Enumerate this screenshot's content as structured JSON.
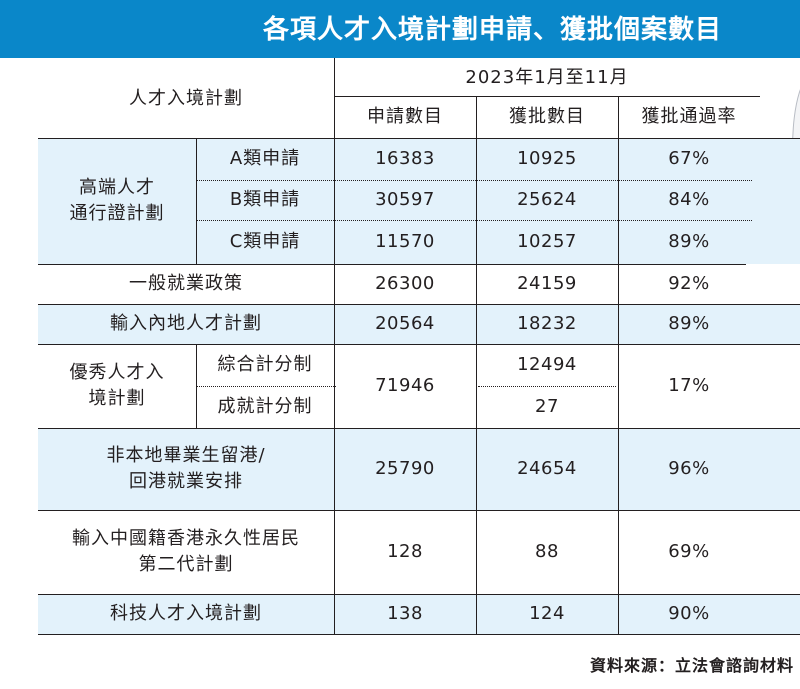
{
  "title": "各項人才入境計劃申請、獲批個案數目",
  "header": {
    "scheme": "人才入境計劃",
    "period": "2023年1月至11月",
    "applications": "申請數目",
    "approvals": "獲批數目",
    "rate": "獲批通過率"
  },
  "groups": {
    "ttps": {
      "line1": "高端人才",
      "line2": "通行證計劃"
    },
    "qmas": {
      "line1": "優秀人才入",
      "line2": "境計劃"
    },
    "irnd": {
      "line1": "非本地畢業生留港/",
      "line2": "回港就業安排"
    },
    "admission": {
      "line1": "輸入中國籍香港永久性居民",
      "line2": "第二代計劃"
    }
  },
  "rows": {
    "a": {
      "label": "A類申請",
      "apps": "16383",
      "appr": "10925",
      "rate": "67%"
    },
    "b": {
      "label": "B類申請",
      "apps": "30597",
      "appr": "25624",
      "rate": "84%"
    },
    "c": {
      "label": "C類申請",
      "apps": "11570",
      "appr": "10257",
      "rate": "89%"
    },
    "gep": {
      "label": "一般就業政策",
      "apps": "26300",
      "appr": "24159",
      "rate": "92%"
    },
    "asmtp": {
      "label": "輸入內地人才計劃",
      "apps": "20564",
      "appr": "18232",
      "rate": "89%"
    },
    "qmas": {
      "general": "綜合計分制",
      "achievement": "成就計分制",
      "apps": "71946",
      "appr_general": "12494",
      "appr_achievement": "27",
      "rate": "17%"
    },
    "irnd": {
      "apps": "25790",
      "appr": "24654",
      "rate": "96%"
    },
    "admission": {
      "apps": "128",
      "appr": "88",
      "rate": "69%"
    },
    "techtas": {
      "label": "科技人才入境計劃",
      "apps": "138",
      "appr": "124",
      "rate": "90%"
    }
  },
  "source": "資料來源：立法會諮詢材料",
  "colors": {
    "title_bar": "#0a87c9",
    "row_shade": "#e3f2fb"
  }
}
